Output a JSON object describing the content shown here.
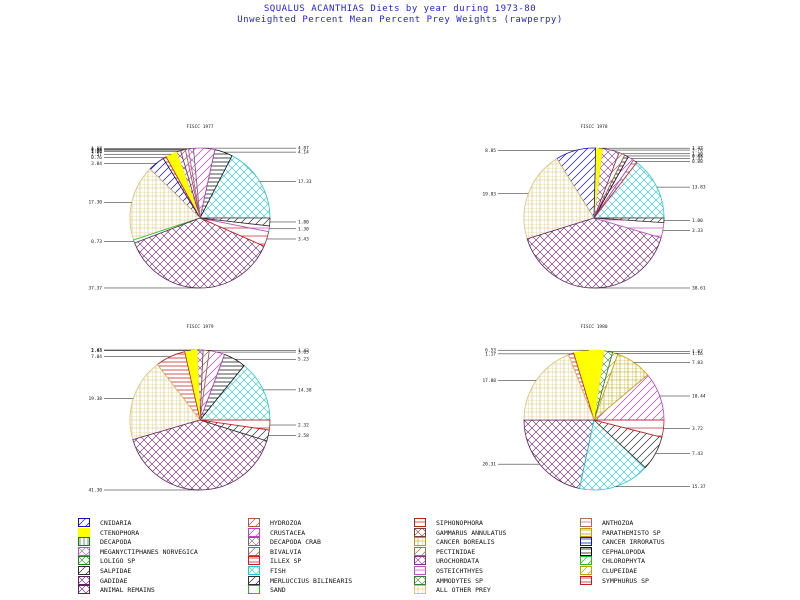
{
  "title": {
    "line1": "SQUALUS ACANTHIAS Diets by year during 1973-80",
    "line2": "Unweighted Percent Mean Percent Prey  Weights (rawperpy)"
  },
  "categories": [
    {
      "key": "cnidaria",
      "label": "CNIDARIA",
      "color": "#1010c0",
      "pattern": "diag"
    },
    {
      "key": "hydrozoa",
      "label": "HYDROZOA",
      "color": "#a06040",
      "pattern": "diag"
    },
    {
      "key": "siphonophora",
      "label": "SIPHONOPHORA",
      "color": "#c02020",
      "pattern": "box"
    },
    {
      "key": "anthozoa",
      "label": "ANTHOZOA",
      "color": "#a07050",
      "pattern": "box"
    },
    {
      "key": "ctenophora",
      "label": "CTENOPHORA",
      "color": "#ffff00",
      "pattern": "solid"
    },
    {
      "key": "crustacea",
      "label": "CRUSTACEA",
      "color": "#c040c0",
      "pattern": "diag"
    },
    {
      "key": "gammarus",
      "label": "GAMMARUS ANNULATUS",
      "color": "#7a3a3a",
      "pattern": "cross"
    },
    {
      "key": "parathemisto",
      "label": "PARATHEMISTO SP",
      "color": "#c0a000",
      "pattern": "horiz"
    },
    {
      "key": "decapoda",
      "label": "DECAPODA",
      "color": "#108010",
      "pattern": "vert"
    },
    {
      "key": "decapoda_crab",
      "label": "DECAPODA CRAB",
      "color": "#806080",
      "pattern": "cross"
    },
    {
      "key": "cancer_borealis",
      "label": "CANCER BOREALIS",
      "color": "#c0a000",
      "pattern": "grid"
    },
    {
      "key": "cancer_irroratus",
      "label": "CANCER IRRORATUS",
      "color": "#1010c0",
      "pattern": "horiz"
    },
    {
      "key": "meganyctiphanes",
      "label": "MEGANYCTIPHANES NORVEGICA",
      "color": "#c050c0",
      "pattern": "cross"
    },
    {
      "key": "bivalvia",
      "label": "BIVALVIA",
      "color": "#a06040",
      "pattern": "diag"
    },
    {
      "key": "pectinidae",
      "label": "PECTINIDAE",
      "color": "#a07050",
      "pattern": "diag"
    },
    {
      "key": "cephalopoda",
      "label": "CEPHALOPODA",
      "color": "#101010",
      "pattern": "horiz"
    },
    {
      "key": "loligo",
      "label": "LOLIGO SP",
      "color": "#208020",
      "pattern": "cross"
    },
    {
      "key": "illex",
      "label": "ILLEX SP",
      "color": "#c02020",
      "pattern": "horiz"
    },
    {
      "key": "urochordata",
      "label": "UROCHORDATA",
      "color": "#803080",
      "pattern": "cross"
    },
    {
      "key": "chlorophyta",
      "label": "CHLOROPHYTA",
      "color": "#20c020",
      "pattern": "diag"
    },
    {
      "key": "salpidae",
      "label": "SALPIDAE",
      "color": "#303030",
      "pattern": "diag"
    },
    {
      "key": "fish",
      "label": "FISH",
      "color": "#20c8d0",
      "pattern": "cross"
    },
    {
      "key": "osteichthyes",
      "label": "OSTEICHTHYES",
      "color": "#c050c0",
      "pattern": "box"
    },
    {
      "key": "clupeidae",
      "label": "CLUPEIDAE",
      "color": "#c0a000",
      "pattern": "diag"
    },
    {
      "key": "gadidae",
      "label": "GADIDAE",
      "color": "#602060",
      "pattern": "cross"
    },
    {
      "key": "merluccius",
      "label": "MERLUCCIUS BILINEARIS",
      "color": "#303030",
      "pattern": "diag"
    },
    {
      "key": "ammodytes",
      "label": "AMMODYTES SP",
      "color": "#308030",
      "pattern": "cross"
    },
    {
      "key": "symphurus",
      "label": "SYMPHURUS SP",
      "color": "#c02020",
      "pattern": "horiz"
    },
    {
      "key": "animal_remains",
      "label": "ANIMAL REMAINS",
      "color": "#602060",
      "pattern": "cross"
    },
    {
      "key": "sand",
      "label": "SAND",
      "color": "#20c020",
      "pattern": "solid-none"
    },
    {
      "key": "all_other",
      "label": "ALL OTHER PREY",
      "color": "#d8c070",
      "pattern": "grid"
    }
  ],
  "chart_data": [
    {
      "type": "pie",
      "title": "FISCC 1977",
      "slices": [
        {
          "category": "fish",
          "value": 17.33,
          "label": "17.33"
        },
        {
          "category": "cephalopoda",
          "value": 4.14,
          "label": "4.14"
        },
        {
          "category": "crustacea",
          "value": 4.87,
          "label": "4.87"
        },
        {
          "category": "decapoda_crab",
          "value": 1.17,
          "label": "1.17"
        },
        {
          "category": "meganyctiphanes",
          "value": 0.68,
          "label": "0.68"
        },
        {
          "category": "bivalvia",
          "value": 1.09,
          "label": "1.09"
        },
        {
          "category": "urochordata",
          "value": 1.0,
          "label": "1.00"
        },
        {
          "category": "ctenophora",
          "value": 2.57,
          "label": "2.57"
        },
        {
          "category": "illex",
          "value": 0.76,
          "label": "0.76"
        },
        {
          "category": "cnidaria",
          "value": 3.84,
          "label": "3.84"
        },
        {
          "category": "all_other",
          "value": 17.3,
          "label": "17.30"
        },
        {
          "category": "sand",
          "value": 0.73,
          "label": "0.73"
        },
        {
          "category": "gadidae",
          "value": 37.37,
          "label": "37.37"
        },
        {
          "category": "siphonophora",
          "value": 3.43,
          "label": "3.43"
        },
        {
          "category": "osteichthyes",
          "value": 1.3,
          "label": "1.30"
        },
        {
          "category": "merluccius",
          "value": 1.8,
          "label": "1.80"
        }
      ]
    },
    {
      "type": "pie",
      "title": "FISCC 1978",
      "slices": [
        {
          "category": "fish",
          "value": 13.83,
          "label": "13.83"
        },
        {
          "category": "siphonophora",
          "value": 0.88,
          "label": "0.88"
        },
        {
          "category": "crustacea",
          "value": 1.32,
          "label": "1.32"
        },
        {
          "category": "cephalopoda",
          "value": 0.88,
          "label": "0.88"
        },
        {
          "category": "bivalvia",
          "value": 1.3,
          "label": "1.30"
        },
        {
          "category": "urochordata",
          "value": 3.76,
          "label": "3.76"
        },
        {
          "category": "ctenophora",
          "value": 1.43,
          "label": "1.43"
        },
        {
          "category": "cnidaria",
          "value": 8.85,
          "label": "8.85"
        },
        {
          "category": "all_other",
          "value": 19.83,
          "label": "19.83"
        },
        {
          "category": "gadidae",
          "value": 38.61,
          "label": "38.61"
        },
        {
          "category": "osteichthyes",
          "value": 3.33,
          "label": "3.33"
        },
        {
          "category": "merluccius",
          "value": 1.0,
          "label": "1.00"
        }
      ]
    },
    {
      "type": "pie",
      "title": "FISCC 1979",
      "slices": [
        {
          "category": "fish",
          "value": 14.38,
          "label": "14.38"
        },
        {
          "category": "cephalopoda",
          "value": 5.23,
          "label": "5.23"
        },
        {
          "category": "crustacea",
          "value": 3.65,
          "label": "3.65"
        },
        {
          "category": "bivalvia",
          "value": 1.43,
          "label": "1.43"
        },
        {
          "category": "urochordata",
          "value": 1.43,
          "label": "1.43"
        },
        {
          "category": "ctenophora",
          "value": 2.84,
          "label": "2.84"
        },
        {
          "category": "illex",
          "value": 7.04,
          "label": "7.04"
        },
        {
          "category": "all_other",
          "value": 19.38,
          "label": "19.38"
        },
        {
          "category": "gadidae",
          "value": 41.3,
          "label": "41.30"
        },
        {
          "category": "merluccius",
          "value": 2.58,
          "label": "2.58"
        },
        {
          "category": "siphonophora",
          "value": 2.32,
          "label": "2.32"
        }
      ]
    },
    {
      "type": "pie",
      "title": "FISCC 1980",
      "slices": [
        {
          "category": "crustacea",
          "value": 10.44,
          "label": "10.44"
        },
        {
          "category": "cancer_borealis",
          "value": 7.83,
          "label": "7.83"
        },
        {
          "category": "clupeidae",
          "value": 1.16,
          "label": "1.16"
        },
        {
          "category": "ammodytes",
          "value": 1.87,
          "label": "1.87"
        },
        {
          "category": "ctenophora",
          "value": 6.53,
          "label": "6.53"
        },
        {
          "category": "illex",
          "value": 1.17,
          "label": "1.17"
        },
        {
          "category": "all_other",
          "value": 17.88,
          "label": "17.88"
        },
        {
          "category": "gadidae",
          "value": 20.31,
          "label": "20.31"
        },
        {
          "category": "fish",
          "value": 15.37,
          "label": "15.37"
        },
        {
          "category": "merluccius",
          "value": 7.43,
          "label": "7.43"
        },
        {
          "category": "siphonophora",
          "value": 3.72,
          "label": "3.72"
        }
      ]
    }
  ]
}
